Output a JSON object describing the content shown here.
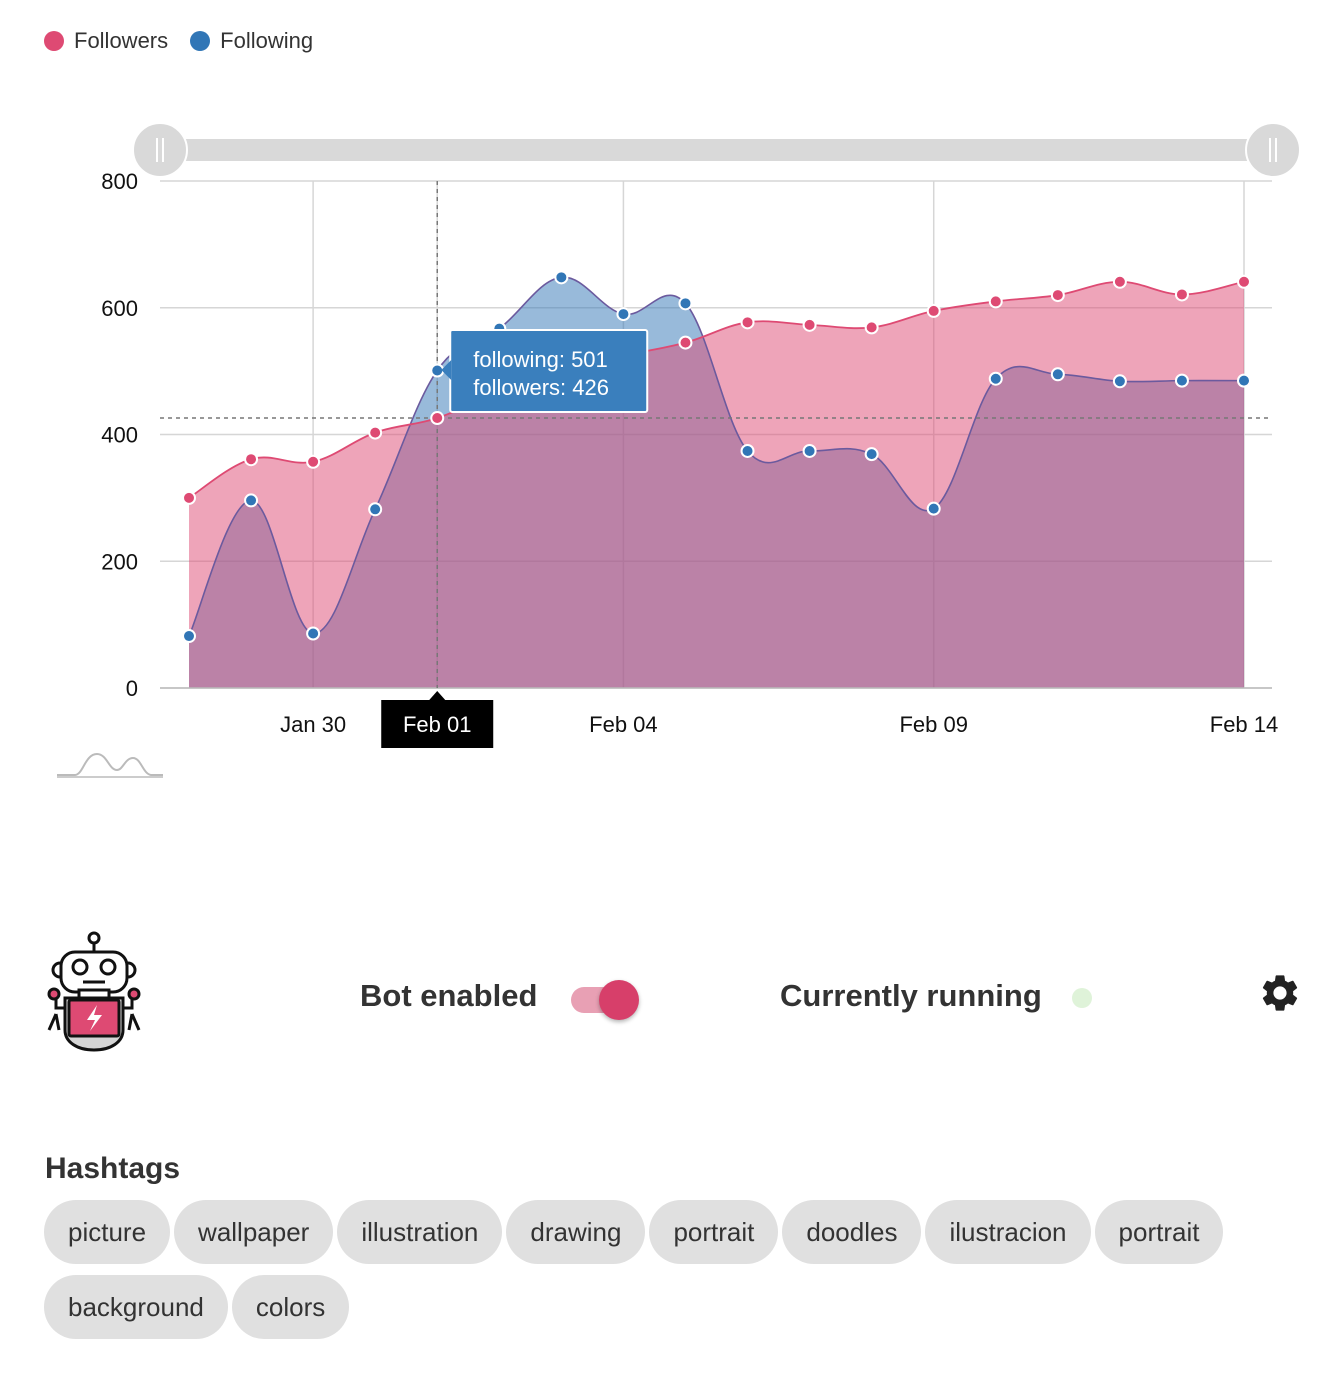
{
  "legend": [
    {
      "label": "Followers",
      "color": "#de4a73"
    },
    {
      "label": "Following",
      "color": "#3176b6"
    }
  ],
  "chart_data": {
    "type": "area",
    "x": [
      "Jan 28",
      "Jan 29",
      "Jan 30",
      "Jan 31",
      "Feb 01",
      "Feb 02",
      "Feb 03",
      "Feb 04",
      "Feb 05",
      "Feb 06",
      "Feb 07",
      "Feb 08",
      "Feb 09",
      "Feb 10",
      "Feb 11",
      "Feb 12",
      "Feb 13",
      "Feb 14"
    ],
    "x_ticks": [
      "Jan 30",
      "Feb 01",
      "Feb 04",
      "Feb 09",
      "Feb 14"
    ],
    "series": [
      {
        "name": "Followers",
        "color": "#de4a73",
        "values": [
          300,
          361,
          357,
          403,
          426,
          469,
          517,
          526,
          545,
          577,
          573,
          569,
          595,
          610,
          620,
          641,
          621,
          641
        ]
      },
      {
        "name": "Following",
        "color": "#3176b6",
        "values": [
          82,
          296,
          86,
          282,
          501,
          567,
          648,
          590,
          607,
          374,
          374,
          369,
          283,
          488,
          495,
          484,
          485,
          485
        ]
      }
    ],
    "y_ticks": [
      0,
      200,
      400,
      600,
      800
    ],
    "ylim": [
      0,
      800
    ],
    "grid": true,
    "highlight_x": "Feb 01",
    "tooltip": {
      "line1": "following: 501",
      "line2": "followers: 426"
    }
  },
  "bot": {
    "label": "Bot enabled",
    "enabled": true
  },
  "status": {
    "label": "Currently running",
    "color": "#dff3d9"
  },
  "hashtags": {
    "title": "Hashtags",
    "items": [
      "picture",
      "wallpaper",
      "illustration",
      "drawing",
      "portrait",
      "doodles",
      "ilustracion",
      "portrait",
      "background",
      "colors"
    ]
  }
}
